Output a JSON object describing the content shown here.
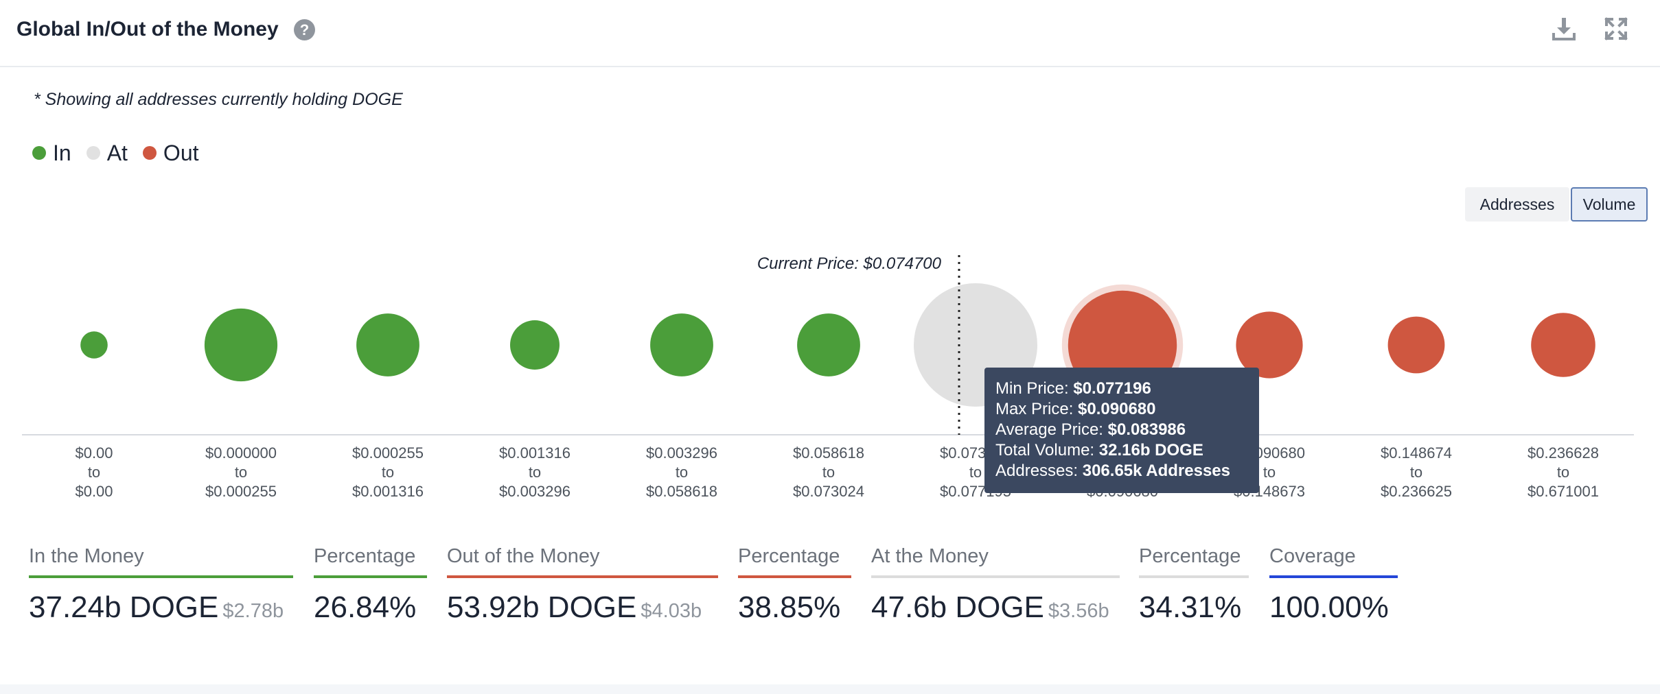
{
  "header": {
    "title": "Global In/Out of the Money",
    "help_icon": "question-circle-icon",
    "actions": [
      {
        "icon": "download-icon"
      },
      {
        "icon": "expand-icon"
      }
    ]
  },
  "note": "* Showing all addresses currently holding DOGE",
  "legend": [
    {
      "label": "In",
      "color": "#4b9e3a"
    },
    {
      "label": "At",
      "color": "#e1e1e1"
    },
    {
      "label": "Out",
      "color": "#cf5740"
    }
  ],
  "toggles": {
    "addresses": "Addresses",
    "volume": "Volume",
    "selected": "Volume"
  },
  "current_price_label": "Current Price: $0.074700",
  "tooltip": {
    "min_label": "Min Price:",
    "min_value": "$0.077196",
    "max_label": "Max Price:",
    "max_value": "$0.090680",
    "avg_label": "Average Price:",
    "avg_value": "$0.083986",
    "vol_label": "Total Volume:",
    "vol_value": "32.16b DOGE",
    "addr_label": "Addresses:",
    "addr_value": "306.65k Addresses"
  },
  "chart_data": {
    "type": "scatter",
    "title": "Global In/Out of the Money",
    "metric": "Volume",
    "current_price": 0.0747,
    "categories": [
      {
        "from": "$0.00",
        "to": "$0.00",
        "status": "In",
        "relative_size": 0.22
      },
      {
        "from": "$0.000000",
        "to": "$0.000255",
        "status": "In",
        "relative_size": 0.59
      },
      {
        "from": "$0.000255",
        "to": "$0.001316",
        "status": "In",
        "relative_size": 0.51
      },
      {
        "from": "$0.001316",
        "to": "$0.003296",
        "status": "In",
        "relative_size": 0.4
      },
      {
        "from": "$0.003296",
        "to": "$0.058618",
        "status": "In",
        "relative_size": 0.51
      },
      {
        "from": "$0.058618",
        "to": "$0.073024",
        "status": "In",
        "relative_size": 0.51
      },
      {
        "from": "$0.073024",
        "to": "$0.077195",
        "status": "At",
        "relative_size": 1.0
      },
      {
        "from": "$0.077196",
        "to": "$0.090680",
        "status": "Out",
        "relative_size": 0.88,
        "highlighted": true
      },
      {
        "from": "$0.090680",
        "to": "$0.148673",
        "status": "Out",
        "relative_size": 0.54
      },
      {
        "from": "$0.148674",
        "to": "$0.236625",
        "status": "Out",
        "relative_size": 0.46
      },
      {
        "from": "$0.236628",
        "to": "$0.671001",
        "status": "Out",
        "relative_size": 0.52
      }
    ],
    "connector": "to",
    "colors": {
      "In": "#4b9e3a",
      "At": "#e1e1e1",
      "Out": "#cf5740"
    }
  },
  "stats": [
    {
      "label": "In the Money",
      "value": "37.24b DOGE",
      "sub": "$2.78b",
      "color": "#4b9e3a"
    },
    {
      "label": "Percentage",
      "value": "26.84%",
      "sub": "",
      "color": "#4b9e3a"
    },
    {
      "label": "Out of the Money",
      "value": "53.92b DOGE",
      "sub": "$4.03b",
      "color": "#cf5740"
    },
    {
      "label": "Percentage",
      "value": "38.85%",
      "sub": "",
      "color": "#cf5740"
    },
    {
      "label": "At the Money",
      "value": "47.6b DOGE",
      "sub": "$3.56b",
      "color": "#dcdcdc"
    },
    {
      "label": "Percentage",
      "value": "34.31%",
      "sub": "",
      "color": "#dcdcdc"
    },
    {
      "label": "Coverage",
      "value": "100.00%",
      "sub": "",
      "color": "#2446d8"
    }
  ]
}
